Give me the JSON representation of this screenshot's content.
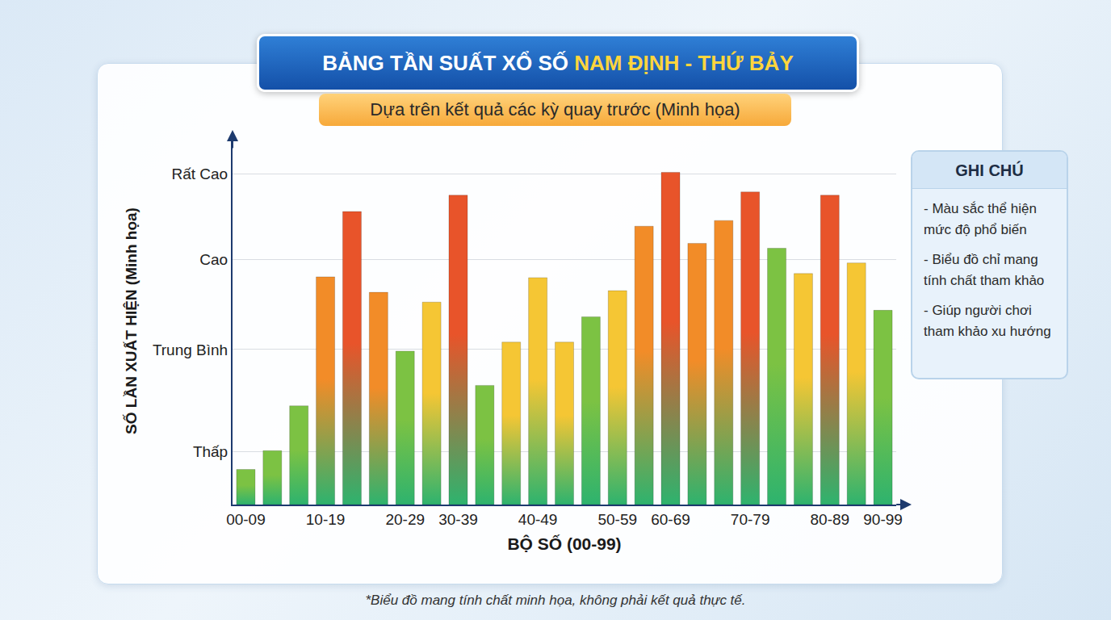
{
  "chart_data": {
    "type": "bar",
    "title": [
      "BẢNG TẦN SUẤT XỔ SỐ",
      "NAM ĐỊNH - THỨ BẢY"
    ],
    "subtitle": "Dựa trên kết quả các kỳ quay trước (Minh họa)",
    "x_label": "BỘ SỐ (00-99)",
    "y_label": "SỐ LẦN XUẤT HIỆN (Minh họa)",
    "categories": [
      "00-09",
      null,
      null,
      "10-19",
      null,
      null,
      "20-29",
      null,
      "30-39",
      null,
      null,
      "40-49",
      null,
      null,
      "50-59",
      null,
      "60-69",
      null,
      null,
      "70-79",
      null,
      null,
      "80-89",
      null,
      "90-99"
    ],
    "values": [
      4.3,
      6.6,
      12.1,
      27.9,
      35.9,
      26.0,
      18.8,
      24.8,
      37.9,
      14.6,
      19.9,
      27.8,
      19.9,
      23.0,
      26.2,
      34.1,
      40.7,
      32.0,
      34.8,
      38.3,
      31.4,
      28.3,
      37.9,
      29.6,
      23.8
    ],
    "colors": [
      "#7cc243",
      "#7cc243",
      "#7cc243",
      "#f28c28",
      "#e8542a",
      "#f28c28",
      "#7cc243",
      "#f5c634",
      "#e8542a",
      "#7cc243",
      "#f5c634",
      "#f5c634",
      "#f5c634",
      "#7cc243",
      "#f5c634",
      "#f28c28",
      "#e8542a",
      "#f28c28",
      "#f28c28",
      "#e8542a",
      "#7cc243",
      "#f5c634",
      "#e8542a",
      "#f5c634",
      "#7cc243"
    ],
    "ylim": [
      0,
      45
    ],
    "yticks": [
      {
        "value": 6.5,
        "label": "Thấp"
      },
      {
        "value": 19,
        "label": "Trung Bình"
      },
      {
        "value": 30,
        "label": "Cao"
      },
      {
        "value": 40.5,
        "label": "Rất Cao"
      }
    ],
    "grid": true,
    "note": {
      "title": "GHI CHÚ",
      "items": [
        "- Màu sắc thể hiện mức độ phổ biến",
        "- Biểu đồ chỉ mang tính chất tham khảo",
        "- Giúp người chơi tham khảo xu hướng"
      ]
    },
    "footnote": "*Biểu đồ mang tính chất minh họa, không phải kết quả thực tế."
  }
}
